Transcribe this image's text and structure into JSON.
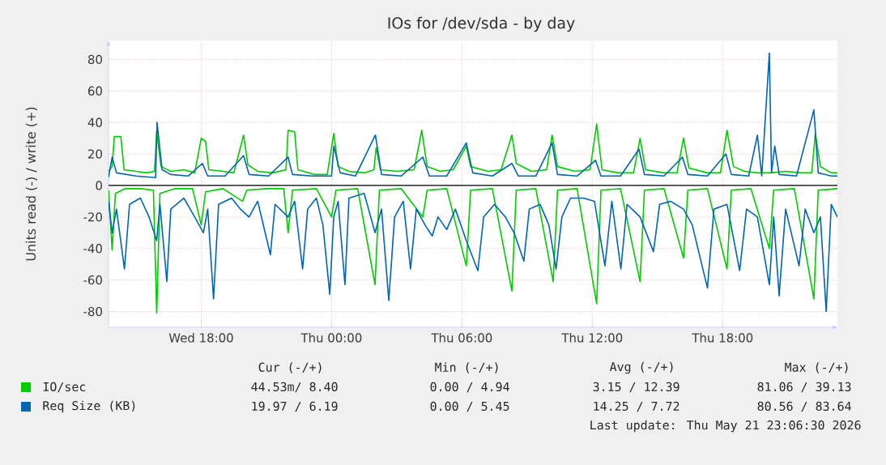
{
  "chart_data": {
    "type": "line",
    "title": "IOs for /dev/sda - by day",
    "ylabel": "Units read (-) / write (+)",
    "xlim": [
      "2026-05-20T13:44",
      "2026-05-21T23:17"
    ],
    "ylim": [
      -90,
      92
    ],
    "xticks": [
      {
        "value": "2026-05-20T18:00",
        "label": "Wed 18:00"
      },
      {
        "value": "2026-05-21T00:00",
        "label": "Thu 00:00"
      },
      {
        "value": "2026-05-21T06:00",
        "label": "Thu 06:00"
      },
      {
        "value": "2026-05-21T12:00",
        "label": "Thu 12:00"
      },
      {
        "value": "2026-05-21T18:00",
        "label": "Thu 18:00"
      }
    ],
    "yticks": [
      -80,
      -60,
      -40,
      -20,
      0,
      20,
      40,
      60,
      80
    ],
    "grid": true,
    "legend": "bottom",
    "ref_lines": [
      {
        "axis": "y",
        "value": 0,
        "color": "#000000"
      }
    ],
    "series": [
      {
        "color": "#00cc00",
        "x": [
          "2026-05-20T13:44",
          "2026-05-20T13:54",
          "2026-05-20T14:03",
          "2026-05-20T14:30",
          "2026-05-20T15:12",
          "2026-05-20T15:48",
          "2026-05-20T15:57",
          "2026-05-20T16:06",
          "2026-05-20T16:48",
          "2026-05-20T17:36",
          "2026-05-20T18:00",
          "2026-05-20T18:12",
          "2026-05-20T19:00",
          "2026-05-20T19:54",
          "2026-05-20T20:06",
          "2026-05-20T21:00",
          "2026-05-20T21:48",
          "2026-05-20T22:00",
          "2026-05-20T22:12",
          "2026-05-20T23:18",
          "2026-05-21T00:00",
          "2026-05-21T00:12",
          "2026-05-21T01:12",
          "2026-05-21T02:00",
          "2026-05-21T02:12",
          "2026-05-21T03:12",
          "2026-05-21T04:12",
          "2026-05-21T04:24",
          "2026-05-21T05:18",
          "2026-05-21T06:12",
          "2026-05-21T06:24",
          "2026-05-21T07:24",
          "2026-05-21T08:18",
          "2026-05-21T08:30",
          "2026-05-21T09:24",
          "2026-05-21T10:12",
          "2026-05-21T10:24",
          "2026-05-21T11:18",
          "2026-05-21T12:12",
          "2026-05-21T12:24",
          "2026-05-21T13:18",
          "2026-05-21T14:12",
          "2026-05-21T14:24",
          "2026-05-21T15:18",
          "2026-05-21T16:12",
          "2026-05-21T16:24",
          "2026-05-21T17:18",
          "2026-05-21T18:12",
          "2026-05-21T18:24",
          "2026-05-21T19:18",
          "2026-05-21T20:09",
          "2026-05-21T20:21",
          "2026-05-21T21:18",
          "2026-05-21T22:12",
          "2026-05-21T22:24",
          "2026-05-21T23:17"
        ],
        "values": [
          -3,
          -41,
          -5,
          -2,
          -2,
          -3,
          -81,
          -5,
          -2,
          -2,
          -25,
          -4,
          -2,
          -10,
          -3,
          -2,
          -2,
          -30,
          -3,
          -2,
          -20,
          -3,
          -2,
          -63,
          -3,
          -2,
          -20,
          -3,
          -2,
          -51,
          -3,
          -2,
          -67,
          -3,
          -2,
          -61,
          -3,
          -2,
          -75,
          -3,
          -2,
          -61,
          -3,
          -2,
          -46,
          -3,
          -2,
          -53,
          -3,
          -2,
          -40,
          -3,
          -2,
          -72,
          -3,
          -2
        ]
      },
      {
        "name": "IO/sec",
        "color": "#00cc00",
        "x": [
          "2026-05-20T13:44",
          "2026-05-20T13:54",
          "2026-05-20T14:00",
          "2026-05-20T14:18",
          "2026-05-20T14:27",
          "2026-05-20T15:00",
          "2026-05-20T15:30",
          "2026-05-20T15:51",
          "2026-05-20T15:57",
          "2026-05-20T16:09",
          "2026-05-20T16:36",
          "2026-05-20T17:12",
          "2026-05-20T17:42",
          "2026-05-20T18:00",
          "2026-05-20T18:12",
          "2026-05-20T18:21",
          "2026-05-20T19:00",
          "2026-05-20T19:30",
          "2026-05-20T19:57",
          "2026-05-20T20:09",
          "2026-05-20T20:36",
          "2026-05-20T21:18",
          "2026-05-20T21:54",
          "2026-05-20T22:00",
          "2026-05-20T22:18",
          "2026-05-20T22:27",
          "2026-05-20T23:12",
          "2026-05-20T23:48",
          "2026-05-21T00:06",
          "2026-05-21T00:18",
          "2026-05-21T00:48",
          "2026-05-21T01:30",
          "2026-05-21T01:57",
          "2026-05-21T02:03",
          "2026-05-21T02:15",
          "2026-05-21T03:00",
          "2026-05-21T03:48",
          "2026-05-21T04:09",
          "2026-05-21T04:24",
          "2026-05-21T05:00",
          "2026-05-21T05:36",
          "2026-05-21T06:12",
          "2026-05-21T06:24",
          "2026-05-21T07:12",
          "2026-05-21T07:48",
          "2026-05-21T08:18",
          "2026-05-21T08:30",
          "2026-05-21T09:12",
          "2026-05-21T09:54",
          "2026-05-21T10:09",
          "2026-05-21T10:24",
          "2026-05-21T11:12",
          "2026-05-21T11:54",
          "2026-05-21T12:12",
          "2026-05-21T12:27",
          "2026-05-21T13:12",
          "2026-05-21T13:54",
          "2026-05-21T14:12",
          "2026-05-21T14:27",
          "2026-05-21T15:18",
          "2026-05-21T15:54",
          "2026-05-21T16:12",
          "2026-05-21T16:27",
          "2026-05-21T17:18",
          "2026-05-21T17:54",
          "2026-05-21T18:12",
          "2026-05-21T18:30",
          "2026-05-21T19:00",
          "2026-05-21T19:36",
          "2026-05-21T20:12",
          "2026-05-21T20:54",
          "2026-05-21T21:36",
          "2026-05-21T22:06",
          "2026-05-21T22:16",
          "2026-05-21T22:30",
          "2026-05-21T23:00",
          "2026-05-21T23:17"
        ],
        "values": [
          9,
          12,
          31,
          31,
          10,
          9,
          8,
          9,
          34,
          12,
          9,
          10,
          8,
          30,
          28,
          10,
          9,
          8,
          32,
          13,
          9,
          8,
          10,
          35,
          34,
          10,
          7,
          7,
          33,
          12,
          9,
          8,
          10,
          24,
          10,
          9,
          10,
          35,
          12,
          9,
          10,
          25,
          12,
          9,
          10,
          32,
          14,
          9,
          10,
          32,
          12,
          9,
          10,
          39,
          10,
          8,
          8,
          30,
          10,
          8,
          8,
          30,
          11,
          8,
          8,
          35,
          12,
          9,
          8,
          8,
          9,
          8,
          8,
          33,
          12,
          8,
          8
        ]
      },
      {
        "color": "#0066b3",
        "x": [
          "2026-05-20T13:44",
          "2026-05-20T13:54",
          "2026-05-20T14:06",
          "2026-05-20T14:28",
          "2026-05-20T14:42",
          "2026-05-20T15:12",
          "2026-05-20T15:36",
          "2026-05-20T15:57",
          "2026-05-20T16:06",
          "2026-05-20T16:25",
          "2026-05-20T16:36",
          "2026-05-20T17:12",
          "2026-05-20T17:42",
          "2026-05-20T18:06",
          "2026-05-20T18:18",
          "2026-05-20T18:34",
          "2026-05-20T18:48",
          "2026-05-20T19:24",
          "2026-05-20T19:48",
          "2026-05-20T20:12",
          "2026-05-20T20:36",
          "2026-05-20T21:11",
          "2026-05-20T21:24",
          "2026-05-20T22:00",
          "2026-05-20T22:18",
          "2026-05-20T22:40",
          "2026-05-20T22:54",
          "2026-05-20T23:18",
          "2026-05-20T23:36",
          "2026-05-20T23:55",
          "2026-05-21T00:06",
          "2026-05-21T00:18",
          "2026-05-21T00:37",
          "2026-05-21T00:48",
          "2026-05-21T01:30",
          "2026-05-21T02:00",
          "2026-05-21T02:18",
          "2026-05-21T02:38",
          "2026-05-21T02:54",
          "2026-05-21T03:18",
          "2026-05-21T03:38",
          "2026-05-21T03:54",
          "2026-05-21T04:18",
          "2026-05-21T04:38",
          "2026-05-21T04:54",
          "2026-05-21T05:18",
          "2026-05-21T05:42",
          "2026-05-21T06:12",
          "2026-05-21T06:44",
          "2026-05-21T07:00",
          "2026-05-21T07:30",
          "2026-05-21T08:00",
          "2026-05-21T08:24",
          "2026-05-21T08:51",
          "2026-05-21T09:06",
          "2026-05-21T09:36",
          "2026-05-21T10:00",
          "2026-05-21T10:20",
          "2026-05-21T10:36",
          "2026-05-21T11:00",
          "2026-05-21T11:36",
          "2026-05-21T12:06",
          "2026-05-21T12:35",
          "2026-05-21T12:54",
          "2026-05-21T13:19",
          "2026-05-21T13:36",
          "2026-05-21T14:12",
          "2026-05-21T14:49",
          "2026-05-21T15:06",
          "2026-05-21T15:36",
          "2026-05-21T16:12",
          "2026-05-21T16:36",
          "2026-05-21T17:18",
          "2026-05-21T17:36",
          "2026-05-21T18:12",
          "2026-05-21T18:47",
          "2026-05-21T19:06",
          "2026-05-21T19:36",
          "2026-05-21T20:09",
          "2026-05-21T20:21",
          "2026-05-21T20:36",
          "2026-05-21T20:54",
          "2026-05-21T21:31",
          "2026-05-21T21:48",
          "2026-05-21T22:12",
          "2026-05-21T22:30",
          "2026-05-21T22:46",
          "2026-05-21T23:00",
          "2026-05-21T23:17"
        ],
        "values": [
          -10,
          -30,
          -15,
          -53,
          -12,
          -8,
          -20,
          -35,
          -12,
          -61,
          -15,
          -8,
          -20,
          -30,
          -15,
          -72,
          -12,
          -8,
          -15,
          -20,
          -10,
          -44,
          -12,
          -20,
          -10,
          -53,
          -15,
          -8,
          -25,
          -69,
          -20,
          -10,
          -63,
          -8,
          -5,
          -30,
          -15,
          -73,
          -20,
          -10,
          -53,
          -15,
          -25,
          -32,
          -20,
          -28,
          -15,
          -35,
          -54,
          -20,
          -12,
          -20,
          -30,
          -48,
          -15,
          -12,
          -25,
          -53,
          -20,
          -8,
          -8,
          -10,
          -51,
          -10,
          -53,
          -12,
          -20,
          -42,
          -12,
          -10,
          -15,
          -25,
          -65,
          -15,
          -12,
          -54,
          -15,
          -20,
          -63,
          -20,
          -70,
          -15,
          -51,
          -15,
          -30,
          -20,
          -80,
          -12,
          -20
        ]
      },
      {
        "name": "Req Size (KB)",
        "color": "#0066b3",
        "x": [
          "2026-05-20T13:44",
          "2026-05-20T13:54",
          "2026-05-20T14:06",
          "2026-05-20T15:00",
          "2026-05-20T15:54",
          "2026-05-20T15:58",
          "2026-05-20T16:12",
          "2026-05-20T16:36",
          "2026-05-20T17:24",
          "2026-05-20T18:03",
          "2026-05-20T18:18",
          "2026-05-20T19:06",
          "2026-05-20T19:57",
          "2026-05-20T20:12",
          "2026-05-20T21:06",
          "2026-05-20T22:00",
          "2026-05-20T22:12",
          "2026-05-20T23:06",
          "2026-05-21T00:00",
          "2026-05-21T00:06",
          "2026-05-21T00:24",
          "2026-05-21T01:06",
          "2026-05-21T02:01",
          "2026-05-21T02:18",
          "2026-05-21T03:12",
          "2026-05-21T04:12",
          "2026-05-21T04:30",
          "2026-05-21T05:18",
          "2026-05-21T06:12",
          "2026-05-21T06:30",
          "2026-05-21T07:24",
          "2026-05-21T08:18",
          "2026-05-21T08:36",
          "2026-05-21T09:24",
          "2026-05-21T10:09",
          "2026-05-21T10:24",
          "2026-05-21T11:18",
          "2026-05-21T12:09",
          "2026-05-21T12:24",
          "2026-05-21T13:18",
          "2026-05-21T14:09",
          "2026-05-21T14:24",
          "2026-05-21T15:18",
          "2026-05-21T16:09",
          "2026-05-21T16:24",
          "2026-05-21T17:18",
          "2026-05-21T18:09",
          "2026-05-21T18:24",
          "2026-05-21T19:12",
          "2026-05-21T19:36",
          "2026-05-21T19:48",
          "2026-05-21T20:09",
          "2026-05-21T20:15",
          "2026-05-21T20:24",
          "2026-05-21T20:36",
          "2026-05-21T21:24",
          "2026-05-21T22:12",
          "2026-05-21T22:24",
          "2026-05-21T23:00",
          "2026-05-21T23:17"
        ],
        "values": [
          5,
          18,
          8,
          6,
          5,
          40,
          10,
          7,
          6,
          14,
          6,
          6,
          19,
          7,
          6,
          18,
          7,
          6,
          6,
          25,
          8,
          6,
          32,
          7,
          6,
          18,
          6,
          6,
          27,
          8,
          6,
          14,
          6,
          6,
          27,
          7,
          6,
          16,
          6,
          6,
          23,
          7,
          6,
          18,
          7,
          6,
          20,
          7,
          6,
          32,
          6,
          84,
          8,
          25,
          7,
          6,
          48,
          8,
          6,
          6
        ]
      }
    ],
    "annotations": [
      "Cur (-/+)",
      "Min (-/+)",
      "Avg (-/+)",
      "Max (-/+)",
      "44.53m/  8.40",
      "0.00 /  4.94",
      "3.15 / 12.39",
      "81.06 / 39.13",
      "19.97 /  6.19",
      "0.00 /  5.45",
      "14.25 /  7.72",
      "80.56 / 83.64",
      "Last update: Thu May 21 23:06:30 2026"
    ]
  }
}
